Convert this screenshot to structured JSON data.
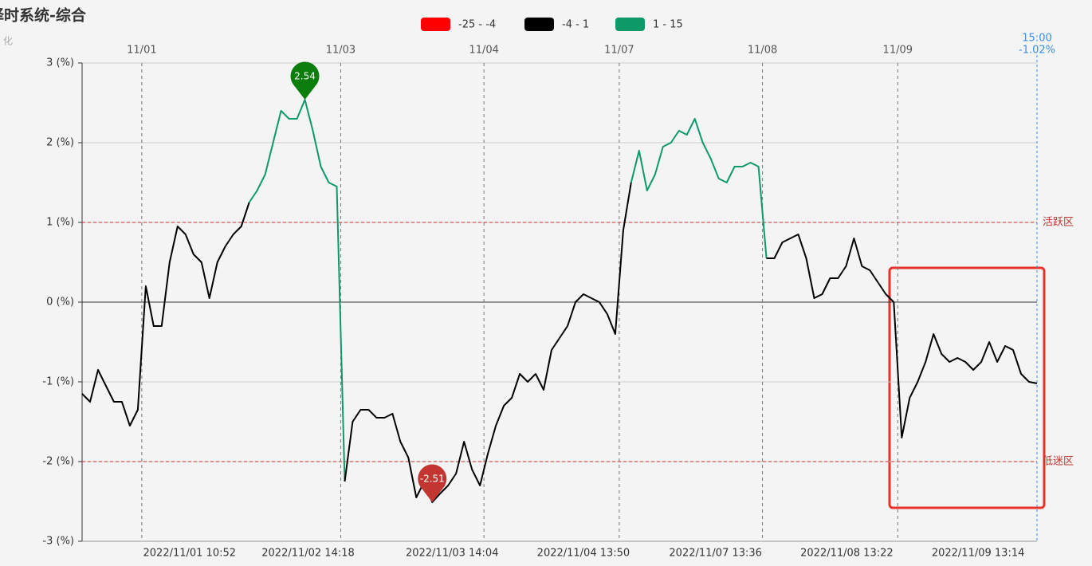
{
  "chart_data": {
    "type": "line",
    "title": "择时系统-综合",
    "subtitle": "化",
    "pieces": [
      {
        "min": -25,
        "max": -4,
        "color": "#ff0000",
        "label": "-25 - -4"
      },
      {
        "min": -4,
        "max": 1,
        "color": "#000000",
        "label": "-4 - 1"
      },
      {
        "min": 1,
        "max": 15,
        "color": "#0e9a68",
        "label": "1 - 15"
      }
    ],
    "x": [
      0,
      1,
      2,
      3,
      4,
      5,
      6,
      7,
      8,
      9,
      10,
      11,
      12,
      13,
      14,
      15,
      16,
      17,
      18,
      19,
      20,
      21,
      22,
      23,
      24,
      25,
      26,
      27,
      28,
      29,
      30,
      31,
      32,
      33,
      34,
      35,
      36,
      37,
      38,
      39,
      40,
      41,
      42,
      43,
      44,
      45,
      46,
      47,
      48,
      49,
      50,
      51,
      52,
      53,
      54,
      55,
      56,
      57,
      58,
      59,
      60,
      61,
      62,
      63,
      64,
      65,
      66,
      67,
      68,
      69,
      70,
      71,
      72,
      73,
      74,
      75,
      76,
      77,
      78,
      79,
      80,
      81,
      82,
      83,
      84,
      85,
      86,
      87,
      88,
      89,
      90,
      91,
      92,
      93,
      94,
      95,
      96,
      97,
      98,
      99,
      100,
      101,
      102,
      103,
      104,
      105,
      106,
      107,
      108,
      109,
      110,
      111,
      112,
      113,
      114,
      115,
      116,
      117,
      118,
      119,
      120
    ],
    "values": [
      -1.15,
      -1.25,
      -0.85,
      -1.05,
      -1.25,
      -1.25,
      -1.55,
      -1.35,
      0.2,
      -0.3,
      -0.3,
      0.5,
      0.95,
      0.85,
      0.6,
      0.5,
      0.05,
      0.5,
      0.7,
      0.85,
      0.95,
      1.25,
      1.4,
      1.6,
      2.0,
      2.4,
      2.3,
      2.3,
      2.54,
      2.15,
      1.7,
      1.5,
      1.45,
      -2.25,
      -1.5,
      -1.35,
      -1.35,
      -1.45,
      -1.45,
      -1.4,
      -1.75,
      -1.95,
      -2.45,
      -2.25,
      -2.51,
      -2.4,
      -2.3,
      -2.15,
      -1.75,
      -2.1,
      -2.3,
      -1.9,
      -1.55,
      -1.3,
      -1.2,
      -0.9,
      -1.0,
      -0.9,
      -1.1,
      -0.6,
      -0.45,
      -0.3,
      0.0,
      0.1,
      0.05,
      0.0,
      -0.15,
      -0.4,
      0.9,
      1.5,
      1.9,
      1.4,
      1.6,
      1.95,
      2.0,
      2.15,
      2.1,
      2.3,
      2.0,
      1.8,
      1.55,
      1.5,
      1.7,
      1.7,
      1.75,
      1.7,
      0.55,
      0.55,
      0.75,
      0.8,
      0.85,
      0.55,
      0.05,
      0.1,
      0.3,
      0.3,
      0.45,
      0.8,
      0.45,
      0.4,
      0.25,
      0.1,
      0.0,
      -1.7,
      -1.2,
      -1.0,
      -0.75,
      -0.4,
      -0.65,
      -0.75,
      -0.7,
      -0.75,
      -0.85,
      -0.75,
      -0.5,
      -0.75,
      -0.55,
      -0.6,
      -0.9,
      -1.0,
      -1.02
    ],
    "xlim": [
      0,
      120
    ],
    "xticks": [
      {
        "value": 7.5,
        "label": "11/01"
      },
      {
        "value": 32.5,
        "label": "11/03"
      },
      {
        "value": 50.5,
        "label": "11/04"
      },
      {
        "value": 67.5,
        "label": "11/07"
      },
      {
        "value": 85.5,
        "label": "11/08"
      },
      {
        "value": 102.5,
        "label": "11/09"
      }
    ],
    "bottom_ticks": [
      {
        "value": 13.5,
        "label": "2022/11/01 10:52"
      },
      {
        "value": 28.4,
        "label": "2022/11/02 14:18"
      },
      {
        "value": 46.5,
        "label": "2022/11/03 14:04"
      },
      {
        "value": 63,
        "label": "2022/11/04 13:50"
      },
      {
        "value": 79.6,
        "label": "2022/11/07 13:36"
      },
      {
        "value": 96.1,
        "label": "2022/11/08 13:22"
      },
      {
        "value": 112.6,
        "label": "2022/11/09 13:14"
      }
    ],
    "ylim": [
      -3,
      3
    ],
    "yticks": [
      {
        "value": -3,
        "label": "-3 (%)"
      },
      {
        "value": -2,
        "label": "-2 (%)"
      },
      {
        "value": -1,
        "label": "-1 (%)"
      },
      {
        "value": 0,
        "label": "0 (%)"
      },
      {
        "value": 1,
        "label": "1 (%)"
      },
      {
        "value": 2,
        "label": "2 (%)"
      },
      {
        "value": 3,
        "label": "3 (%)"
      }
    ],
    "grid": true,
    "mark_lines": [
      {
        "value": 1,
        "label": "活跃区"
      },
      {
        "value": -2,
        "label": "低迷区"
      }
    ],
    "mark_points": [
      {
        "x": 28,
        "value": 2.54,
        "color": "#0a7d0a"
      },
      {
        "x": 44,
        "value": -2.51,
        "color": "#c23531"
      }
    ],
    "end_label": {
      "x": 120,
      "time": "15:00",
      "value": -1.02,
      "label": "-1.02%"
    }
  }
}
